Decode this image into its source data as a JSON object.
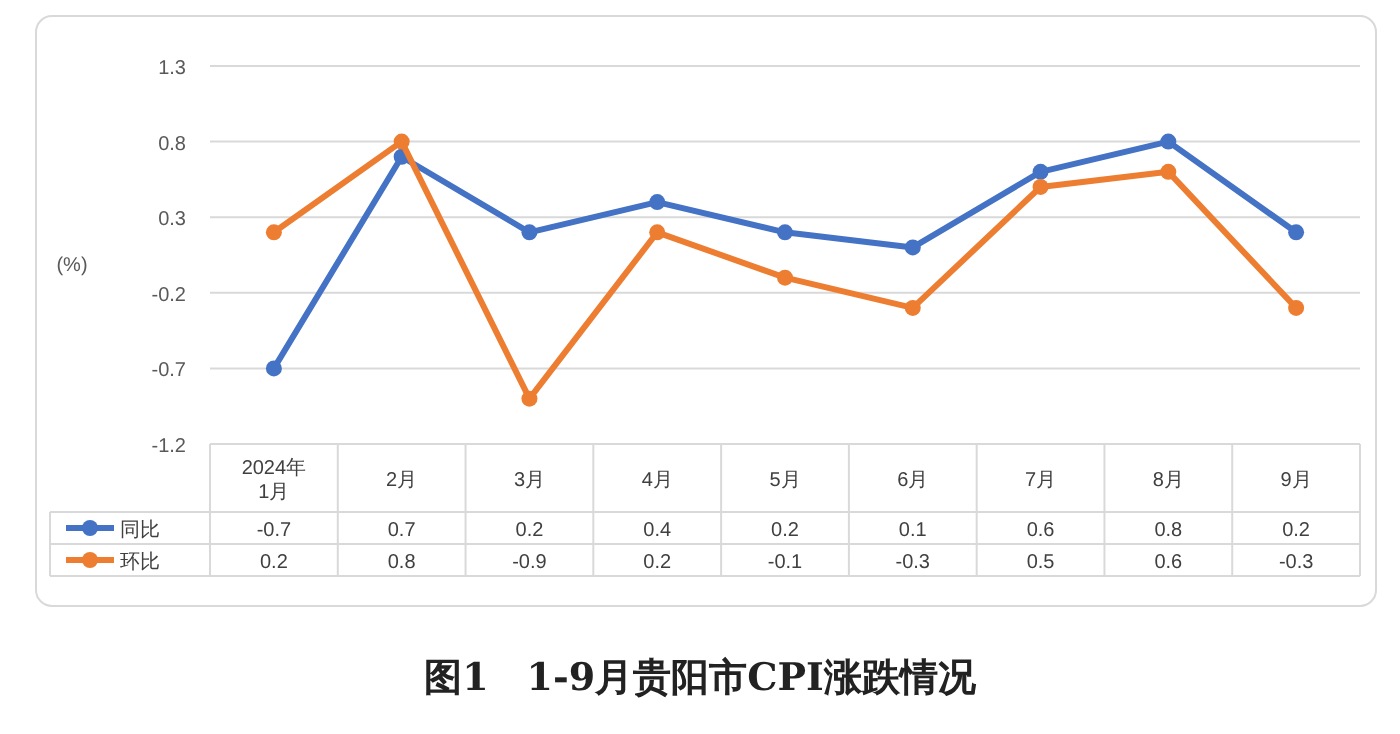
{
  "chart_data": {
    "type": "line",
    "title": "图1　1-9月贵阳市CPI涨跌情况",
    "ylabel": "(%)",
    "categories": [
      "2024年\n1月",
      "2月",
      "3月",
      "4月",
      "5月",
      "6月",
      "7月",
      "8月",
      "9月"
    ],
    "series": [
      {
        "name": "同比",
        "color": "#4472c4",
        "values": [
          -0.7,
          0.7,
          0.2,
          0.4,
          0.2,
          0.1,
          0.6,
          0.8,
          0.2
        ]
      },
      {
        "name": "环比",
        "color": "#ed7d31",
        "values": [
          0.2,
          0.8,
          -0.9,
          0.2,
          -0.1,
          -0.3,
          0.5,
          0.6,
          -0.3
        ]
      }
    ],
    "ylim": [
      -1.2,
      1.3
    ],
    "yticks": [
      -1.2,
      -0.7,
      -0.2,
      0.3,
      0.8,
      1.3
    ],
    "grid": "y",
    "legend": "bottom",
    "marker": "circle",
    "data_labels": true
  }
}
